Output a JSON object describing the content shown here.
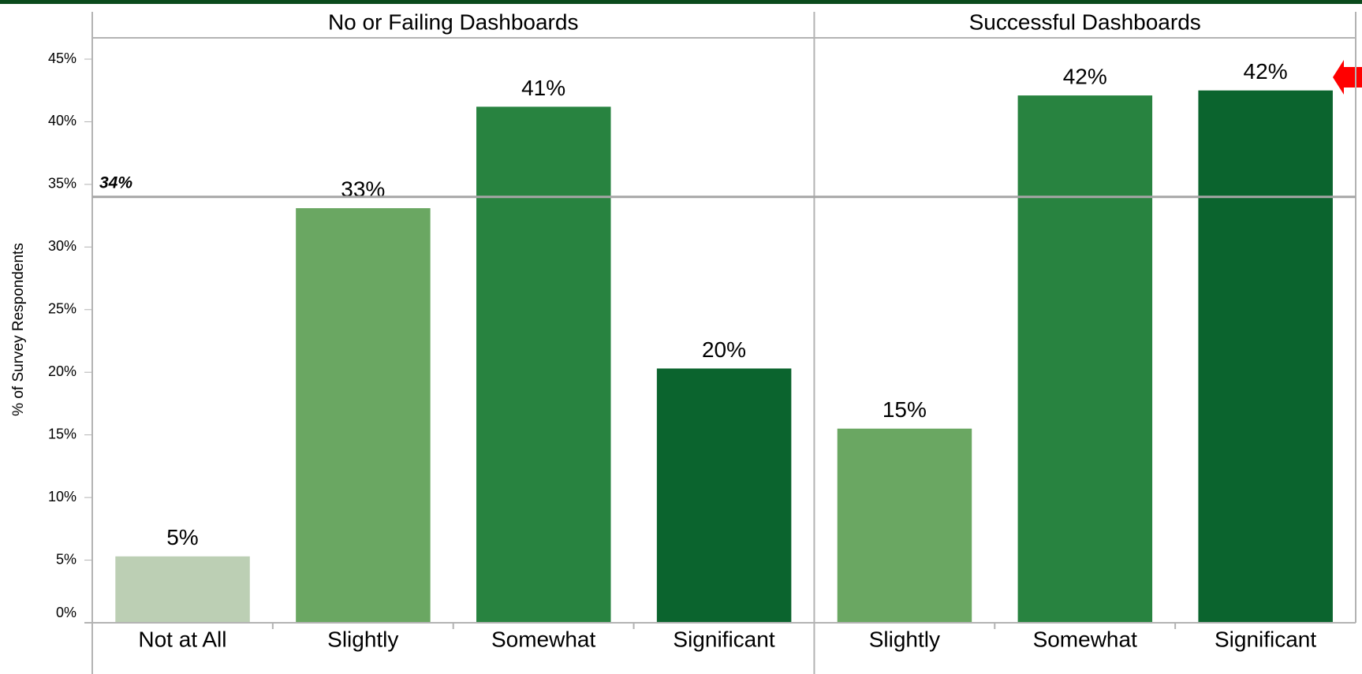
{
  "chart_data": {
    "type": "bar",
    "y_label": "% of Survey Respondents",
    "ylim": [
      0,
      46.7
    ],
    "yticks": [
      {
        "value": 0,
        "label": "0%"
      },
      {
        "value": 5,
        "label": "5%"
      },
      {
        "value": 10,
        "label": "10%"
      },
      {
        "value": 15,
        "label": "15%"
      },
      {
        "value": 20,
        "label": "20%"
      },
      {
        "value": 25,
        "label": "25%"
      },
      {
        "value": 30,
        "label": "30%"
      },
      {
        "value": 35,
        "label": "35%"
      },
      {
        "value": 40,
        "label": "40%"
      },
      {
        "value": 45,
        "label": "45%"
      }
    ],
    "reference_line": {
      "value": 34,
      "label": "34%",
      "color": "#a6a6a6"
    },
    "panels": [
      {
        "title": "No or Failing Dashboards",
        "categories": [
          "Not at All",
          "Slightly",
          "Somewhat",
          "Significant"
        ],
        "values": [
          5.3,
          33.1,
          41.2,
          20.3
        ],
        "value_labels": [
          "5%",
          "33%",
          "41%",
          "20%"
        ],
        "colors": [
          "#bccfb4",
          "#6aa762",
          "#288340",
          "#0b642e"
        ]
      },
      {
        "title": "Successful Dashboards",
        "categories": [
          "Slightly",
          "Somewhat",
          "Significant"
        ],
        "values": [
          15.5,
          42.1,
          42.5
        ],
        "value_labels": [
          "15%",
          "42%",
          "42%"
        ],
        "colors": [
          "#6aa762",
          "#288340",
          "#0b642e"
        ]
      }
    ]
  }
}
